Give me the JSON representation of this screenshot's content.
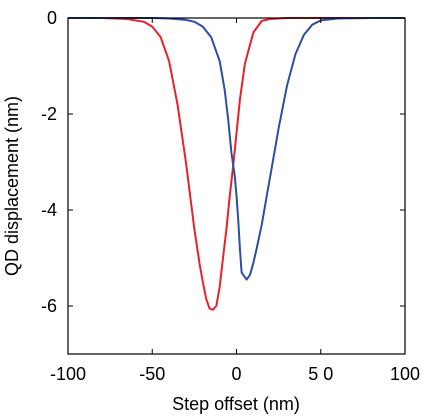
{
  "chart_data": {
    "type": "line",
    "title": "",
    "xlabel": "Step offset (nm)",
    "ylabel": "QD displacement (nm)",
    "xlim": [
      -100,
      100
    ],
    "ylim": [
      -7,
      0
    ],
    "x_ticks": [
      -100,
      -50,
      0,
      50,
      100
    ],
    "x_tick_labels": [
      "-100",
      "-50",
      "0",
      "5 0",
      "100"
    ],
    "y_ticks": [
      0,
      -2,
      -4,
      -6
    ],
    "y_tick_labels": [
      "0",
      "-2",
      "-4",
      "-6"
    ],
    "grid": false,
    "legend": "none",
    "series": [
      {
        "color": "#e8212a",
        "x": [
          -100,
          -80,
          -65,
          -55,
          -50,
          -45,
          -40,
          -35,
          -30,
          -25,
          -22,
          -20,
          -18,
          -16,
          -14,
          -12,
          -10,
          -8,
          -6,
          -4,
          -2,
          0,
          2,
          5,
          10,
          15,
          20,
          30,
          40,
          60,
          80,
          100
        ],
        "y": [
          0,
          0,
          -0.02,
          -0.08,
          -0.18,
          -0.4,
          -0.9,
          -1.8,
          -3.0,
          -4.4,
          -5.1,
          -5.5,
          -5.85,
          -6.05,
          -6.08,
          -6.0,
          -5.6,
          -5.0,
          -4.4,
          -3.7,
          -3.1,
          -2.4,
          -1.7,
          -0.95,
          -0.3,
          -0.06,
          -0.02,
          0,
          0,
          0,
          0,
          0
        ]
      },
      {
        "color": "#2e4ea2",
        "x": [
          -100,
          -50,
          -40,
          -30,
          -25,
          -20,
          -15,
          -10,
          -7,
          -5,
          -3,
          -1,
          0,
          1,
          2,
          3,
          4,
          6,
          8,
          10,
          12,
          15,
          18,
          20,
          25,
          30,
          35,
          40,
          45,
          50,
          60,
          80,
          100
        ],
        "y": [
          0,
          0,
          -0.01,
          -0.04,
          -0.08,
          -0.18,
          -0.4,
          -0.9,
          -1.5,
          -2.1,
          -2.8,
          -3.3,
          -3.7,
          -4.2,
          -4.8,
          -5.3,
          -5.35,
          -5.45,
          -5.35,
          -5.1,
          -4.8,
          -4.3,
          -3.7,
          -3.3,
          -2.3,
          -1.4,
          -0.75,
          -0.35,
          -0.14,
          -0.05,
          -0.01,
          0,
          0
        ]
      }
    ]
  }
}
